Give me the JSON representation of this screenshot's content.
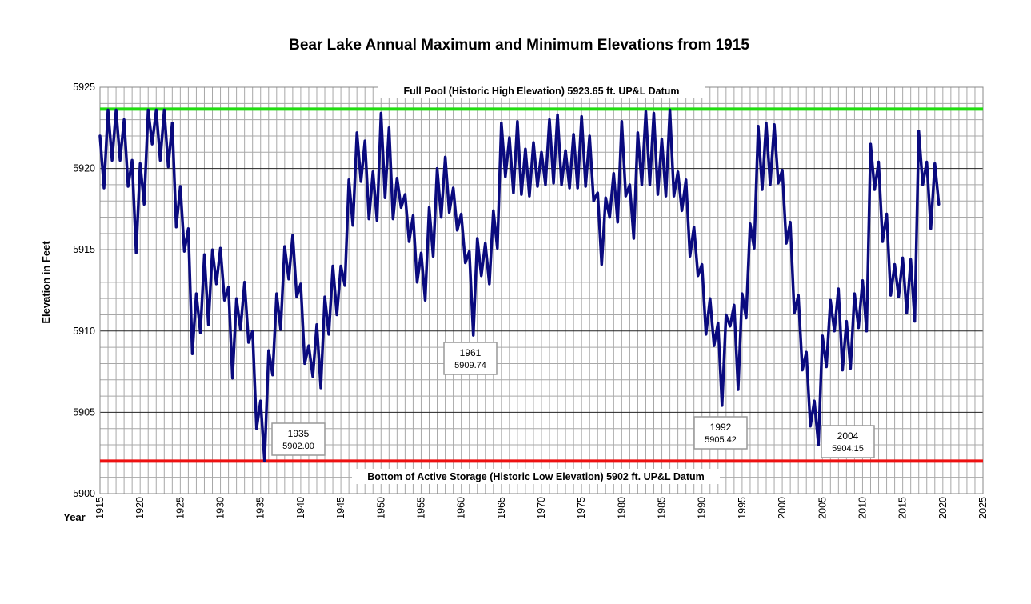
{
  "chart_data": {
    "type": "line",
    "title": "Bear Lake Annual Maximum and Minimum Elevations  from 1915",
    "xlabel": "Year",
    "ylabel": "Elevation in Feet",
    "xlim": [
      1915,
      2025
    ],
    "ylim": [
      5900,
      5925
    ],
    "x_ticks": [
      "1915",
      "1920",
      "1925",
      "1930",
      "1935",
      "1940",
      "1945",
      "1950",
      "1955",
      "1960",
      "1965",
      "1970",
      "1975",
      "1980",
      "1985",
      "1990",
      "1995",
      "2000",
      "2005",
      "2010",
      "2015",
      "2020",
      "2025"
    ],
    "y_ticks": [
      "5900",
      "5905",
      "5910",
      "5915",
      "5920",
      "5925"
    ],
    "grid": true,
    "series_color": "#0a0a7e",
    "series": [
      {
        "x": [
          1915.0,
          1915.5,
          1916.0,
          1916.5,
          1917.0,
          1917.5,
          1918.0,
          1918.5,
          1919.0,
          1919.5,
          1920.0,
          1920.5,
          1921.0,
          1921.5,
          1922.0,
          1922.5,
          1923.0,
          1923.5,
          1924.0,
          1924.5,
          1925.0,
          1925.5,
          1926.0,
          1926.5,
          1927.0,
          1927.5,
          1928.0,
          1928.5,
          1929.0,
          1929.5,
          1930.0,
          1930.5,
          1931.0,
          1931.5,
          1932.0,
          1932.5,
          1933.0,
          1933.5,
          1934.0,
          1934.5,
          1935.0,
          1935.5,
          1936.0,
          1936.5,
          1937.0,
          1937.5,
          1938.0,
          1938.5,
          1939.0,
          1939.5,
          1940.0,
          1940.5,
          1941.0,
          1941.5,
          1942.0,
          1942.5,
          1943.0,
          1943.5,
          1944.0,
          1944.5,
          1945.0,
          1945.5,
          1946.0,
          1946.5,
          1947.0,
          1947.5,
          1948.0,
          1948.5,
          1949.0,
          1949.5,
          1950.0,
          1950.5,
          1951.0,
          1951.5,
          1952.0,
          1952.5,
          1953.0,
          1953.5,
          1954.0,
          1954.5,
          1955.0,
          1955.5,
          1956.0,
          1956.5,
          1957.0,
          1957.5,
          1958.0,
          1958.5,
          1959.0,
          1959.5,
          1960.0,
          1960.5,
          1961.0,
          1961.5,
          1962.0,
          1962.5,
          1963.0,
          1963.5,
          1964.0,
          1964.5,
          1965.0,
          1965.5,
          1966.0,
          1966.5,
          1967.0,
          1967.5,
          1968.0,
          1968.5,
          1969.0,
          1969.5,
          1970.0,
          1970.5,
          1971.0,
          1971.5,
          1972.0,
          1972.5,
          1973.0,
          1973.5,
          1974.0,
          1974.5,
          1975.0,
          1975.5,
          1976.0,
          1976.5,
          1977.0,
          1977.5,
          1978.0,
          1978.5,
          1979.0,
          1979.5,
          1980.0,
          1980.5,
          1981.0,
          1981.5,
          1982.0,
          1982.5,
          1983.0,
          1983.5,
          1984.0,
          1984.5,
          1985.0,
          1985.5,
          1986.0,
          1986.5,
          1987.0,
          1987.5,
          1988.0,
          1988.5,
          1989.0,
          1989.5,
          1990.0,
          1990.5,
          1991.0,
          1991.5,
          1992.0,
          1992.5,
          1993.0,
          1993.5,
          1994.0,
          1994.5,
          1995.0,
          1995.5,
          1996.0,
          1996.5,
          1997.0,
          1997.5,
          1998.0,
          1998.5,
          1999.0,
          1999.5,
          2000.0,
          2000.5,
          2001.0,
          2001.5,
          2002.0,
          2002.5,
          2003.0,
          2003.5,
          2004.0,
          2004.5,
          2005.0,
          2005.5,
          2006.0,
          2006.5,
          2007.0,
          2007.5,
          2008.0,
          2008.5,
          2009.0,
          2009.5,
          2010.0,
          2010.5,
          2011.0,
          2011.5,
          2012.0,
          2012.5,
          2013.0,
          2013.5,
          2014.0,
          2014.5,
          2015.0,
          2015.5,
          2016.0,
          2016.5,
          2017.0,
          2017.5,
          2018.0,
          2018.5,
          2019.0,
          2019.5
        ],
        "y": [
          5922.0,
          5918.8,
          5923.6,
          5920.5,
          5923.6,
          5920.5,
          5923.0,
          5918.9,
          5920.5,
          5914.8,
          5920.3,
          5917.8,
          5923.6,
          5921.5,
          5923.6,
          5920.5,
          5923.6,
          5920.1,
          5922.8,
          5916.4,
          5918.9,
          5914.9,
          5916.3,
          5908.6,
          5912.3,
          5909.9,
          5914.7,
          5910.4,
          5915.0,
          5912.9,
          5915.1,
          5911.9,
          5912.7,
          5907.1,
          5912.0,
          5910.1,
          5913.0,
          5909.3,
          5910.0,
          5904.0,
          5905.7,
          5902.0,
          5908.8,
          5907.3,
          5912.3,
          5910.1,
          5915.2,
          5913.2,
          5915.9,
          5912.1,
          5912.9,
          5908.0,
          5909.1,
          5907.2,
          5910.4,
          5906.5,
          5912.1,
          5909.8,
          5914.0,
          5911.0,
          5914.0,
          5912.8,
          5919.3,
          5916.5,
          5922.2,
          5919.2,
          5921.7,
          5916.9,
          5919.8,
          5916.8,
          5923.4,
          5918.2,
          5922.5,
          5916.9,
          5919.4,
          5917.6,
          5918.4,
          5915.5,
          5917.1,
          5913.0,
          5914.8,
          5911.9,
          5917.6,
          5914.6,
          5920.0,
          5917.0,
          5920.7,
          5917.3,
          5918.8,
          5916.2,
          5917.2,
          5914.2,
          5914.9,
          5909.74,
          5915.7,
          5913.4,
          5915.4,
          5912.9,
          5917.4,
          5915.1,
          5922.8,
          5919.5,
          5921.9,
          5918.5,
          5922.9,
          5918.4,
          5921.2,
          5918.3,
          5921.6,
          5918.9,
          5921.0,
          5919.0,
          5923.0,
          5919.1,
          5923.3,
          5919.0,
          5921.1,
          5918.8,
          5922.1,
          5918.8,
          5923.2,
          5918.9,
          5922.0,
          5918.0,
          5918.5,
          5914.1,
          5918.2,
          5917.0,
          5919.7,
          5916.7,
          5922.9,
          5918.3,
          5919.0,
          5915.7,
          5922.2,
          5919.0,
          5923.5,
          5919.0,
          5923.4,
          5918.4,
          5921.8,
          5918.3,
          5923.6,
          5918.3,
          5919.8,
          5917.4,
          5919.3,
          5914.6,
          5916.4,
          5913.4,
          5914.1,
          5909.8,
          5912.0,
          5909.1,
          5910.5,
          5905.42,
          5911.0,
          5910.3,
          5911.6,
          5906.4,
          5912.3,
          5910.8,
          5916.6,
          5915.1,
          5922.6,
          5918.7,
          5922.8,
          5919.0,
          5922.7,
          5919.1,
          5919.9,
          5915.4,
          5916.7,
          5911.1,
          5912.2,
          5907.6,
          5908.7,
          5904.15,
          5905.7,
          5903.0,
          5909.7,
          5907.8,
          5911.9,
          5910.0,
          5912.6,
          5907.6,
          5910.6,
          5907.7,
          5912.3,
          5910.2,
          5913.1,
          5910.0,
          5921.5,
          5918.7,
          5920.4,
          5915.5,
          5917.2,
          5912.2,
          5914.1,
          5912.1,
          5914.5,
          5911.1,
          5914.4,
          5910.6,
          5922.3,
          5919.0,
          5920.4,
          5916.3,
          5920.3,
          5917.8
        ]
      }
    ],
    "reference_lines": [
      {
        "label": "Full Pool (Historic High Elevation) 5923.65  ft. UP&L Datum",
        "y": 5923.65,
        "color": "#22dd11"
      },
      {
        "label": "Bottom of Active Storage (Historic Low Elevation) 5902  ft. UP&L Datum",
        "y": 5902,
        "color": "#ee1111"
      }
    ],
    "annotations": [
      {
        "year": "1935",
        "value": "5902.00"
      },
      {
        "year": "1961",
        "value": "5909.74"
      },
      {
        "year": "1992",
        "value": "5905.42"
      },
      {
        "year": "2004",
        "value": "5904.15"
      }
    ]
  }
}
